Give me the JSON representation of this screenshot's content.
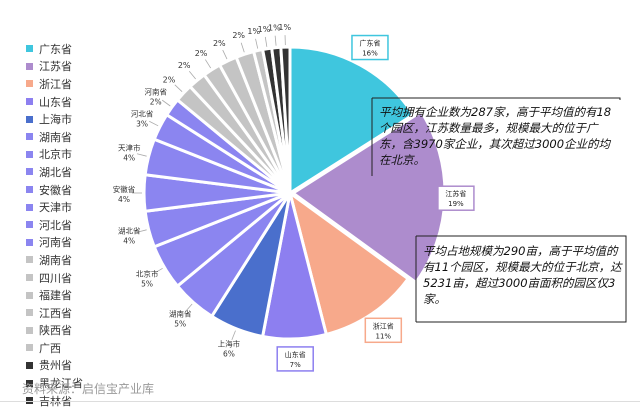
{
  "chart_data": {
    "type": "pie",
    "categories": [
      "广东省",
      "江苏省",
      "浙江省",
      "山东省",
      "上海市",
      "湖南省",
      "北京市",
      "湖北省",
      "安徽省",
      "天津市",
      "河北省",
      "河南省",
      "湖南省",
      "四川省",
      "福建省",
      "江西省",
      "陕西省",
      "广西",
      "贵州省",
      "黑龙江省",
      "吉林省"
    ],
    "values": [
      16,
      19,
      11,
      7,
      6,
      5,
      5,
      4,
      4,
      4,
      3,
      2,
      2,
      2,
      2,
      2,
      2,
      1,
      1,
      1,
      1
    ],
    "value_labels": [
      "16%",
      "19%",
      "11%",
      "7%",
      "6%",
      "5%",
      "5%",
      "4%",
      "4%",
      "4%",
      "3%",
      "2%",
      "2%",
      "2%",
      "2%",
      "2%",
      "2%",
      "1%",
      "1%",
      "1%",
      "1%"
    ],
    "colors": [
      "#3fc6de",
      "#ad8ccd",
      "#f7a98b",
      "#8d7ff0",
      "#4a6fcc",
      "#8b85f0",
      "#8b85f0",
      "#8b85f0",
      "#8b85f0",
      "#8b85f0",
      "#8b85f0",
      "#8b85f0",
      "#c4c4c4",
      "#c4c4c4",
      "#c4c4c4",
      "#c4c4c4",
      "#c4c4c4",
      "#c4c4c4",
      "#333333",
      "#333333",
      "#333333"
    ],
    "legend_position": "left",
    "highlighted": [
      "广东省",
      "江苏省",
      "浙江省",
      "山东省"
    ]
  },
  "annotations": [
    "平均拥有企业数为287家，高于平均值的有18个园区，江苏数量最多，规模最大的位于广东，含3970家企业，其次超过3000企业的均在北京。",
    "平均占地规模为290亩，高于平均值的有11个园区，规模最大的位于北京，达5231亩，超过3000亩面积的园区仅3家。"
  ],
  "source": "资料来源：启信宝产业库"
}
